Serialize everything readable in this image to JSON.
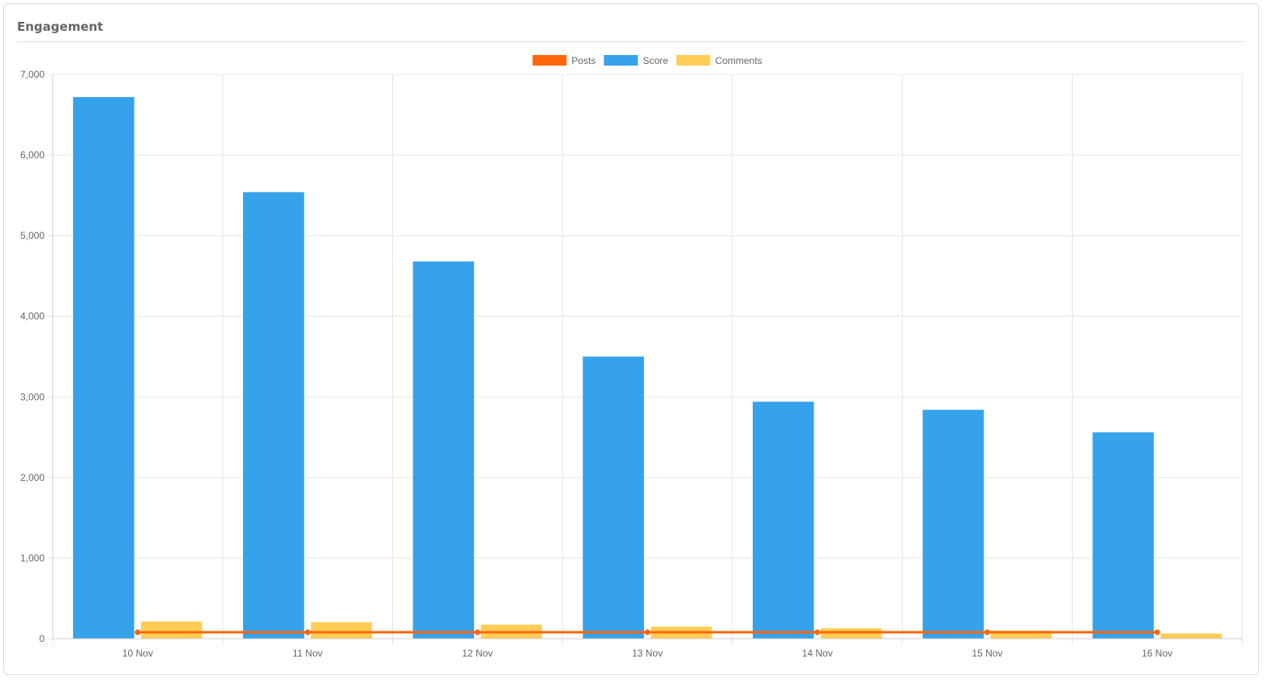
{
  "card": {
    "title": "Engagement"
  },
  "colors": {
    "posts": "#ff6609",
    "score": "#36a2eb",
    "comments": "#ffcd56",
    "grid": "#e5e5e5",
    "text": "#666666"
  },
  "chart_data": {
    "type": "bar",
    "categories": [
      "10 Nov",
      "11 Nov",
      "12 Nov",
      "13 Nov",
      "14 Nov",
      "15 Nov",
      "16 Nov"
    ],
    "series": [
      {
        "name": "Posts",
        "type": "line",
        "values": [
          80,
          80,
          80,
          80,
          80,
          80,
          80
        ]
      },
      {
        "name": "Score",
        "type": "bar",
        "values": [
          6720,
          5540,
          4680,
          3500,
          2940,
          2840,
          2560
        ]
      },
      {
        "name": "Comments",
        "type": "bar",
        "values": [
          215,
          205,
          175,
          150,
          130,
          100,
          65
        ]
      }
    ],
    "ylim": [
      0,
      7000
    ],
    "yticks": [
      0,
      1000,
      2000,
      3000,
      4000,
      5000,
      6000,
      7000
    ],
    "ytick_labels": [
      "0",
      "1,000",
      "2,000",
      "3,000",
      "4,000",
      "5,000",
      "6,000",
      "7,000"
    ],
    "grid": true,
    "legend": "top-center"
  }
}
